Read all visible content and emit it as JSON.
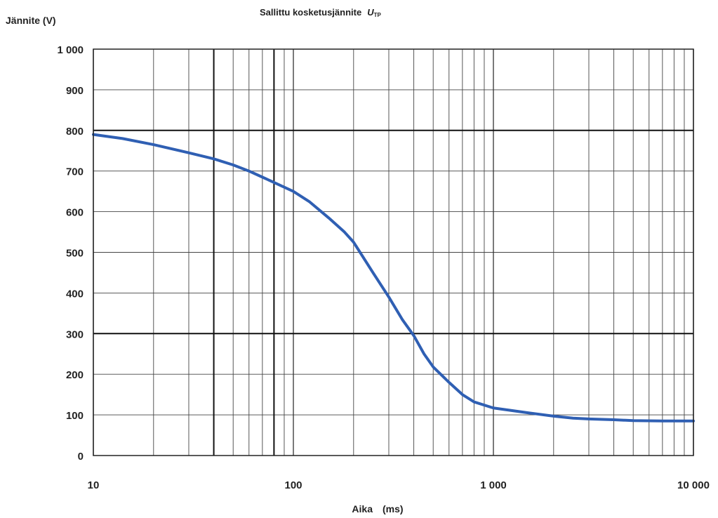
{
  "chart_data": {
    "type": "line",
    "title": "Sallittu kosketusjännite",
    "title_symbol": "U",
    "title_symbol_subscript": "TP",
    "ylabel": "Jännite (V)",
    "xlabel": "Aika",
    "xlabel_unit": "(ms)",
    "x_scale": "log",
    "xlim": [
      10,
      10000
    ],
    "ylim": [
      0,
      1000
    ],
    "x_ticks": [
      {
        "value": 10,
        "label": "10"
      },
      {
        "value": 100,
        "label": "100"
      },
      {
        "value": 1000,
        "label": "1 000"
      },
      {
        "value": 10000,
        "label": "10 000"
      }
    ],
    "y_ticks": [
      {
        "value": 0,
        "label": "0"
      },
      {
        "value": 100,
        "label": "100"
      },
      {
        "value": 200,
        "label": "200"
      },
      {
        "value": 300,
        "label": "300"
      },
      {
        "value": 400,
        "label": "400"
      },
      {
        "value": 500,
        "label": "500"
      },
      {
        "value": 600,
        "label": "600"
      },
      {
        "value": 700,
        "label": "700"
      },
      {
        "value": 800,
        "label": "800"
      },
      {
        "value": 900,
        "label": "900"
      },
      {
        "value": 1000,
        "label": "1 000"
      }
    ],
    "grid": true,
    "bold_x_gridlines": [
      40,
      80
    ],
    "bold_y_gridlines": [
      300,
      800
    ],
    "series": [
      {
        "color": "#2f5fb3",
        "x": [
          10,
          14,
          20,
          30,
          40,
          50,
          60,
          70,
          80,
          100,
          120,
          150,
          180,
          200,
          250,
          300,
          350,
          400,
          450,
          500,
          600,
          700,
          800,
          1000,
          1500,
          2000,
          2500,
          3000,
          4000,
          5000,
          7000,
          10000
        ],
        "y": [
          790,
          780,
          765,
          745,
          730,
          715,
          700,
          685,
          672,
          650,
          625,
          585,
          550,
          525,
          450,
          390,
          335,
          295,
          250,
          218,
          180,
          150,
          132,
          117,
          105,
          97,
          92,
          90,
          88,
          86,
          85,
          85
        ]
      }
    ]
  }
}
